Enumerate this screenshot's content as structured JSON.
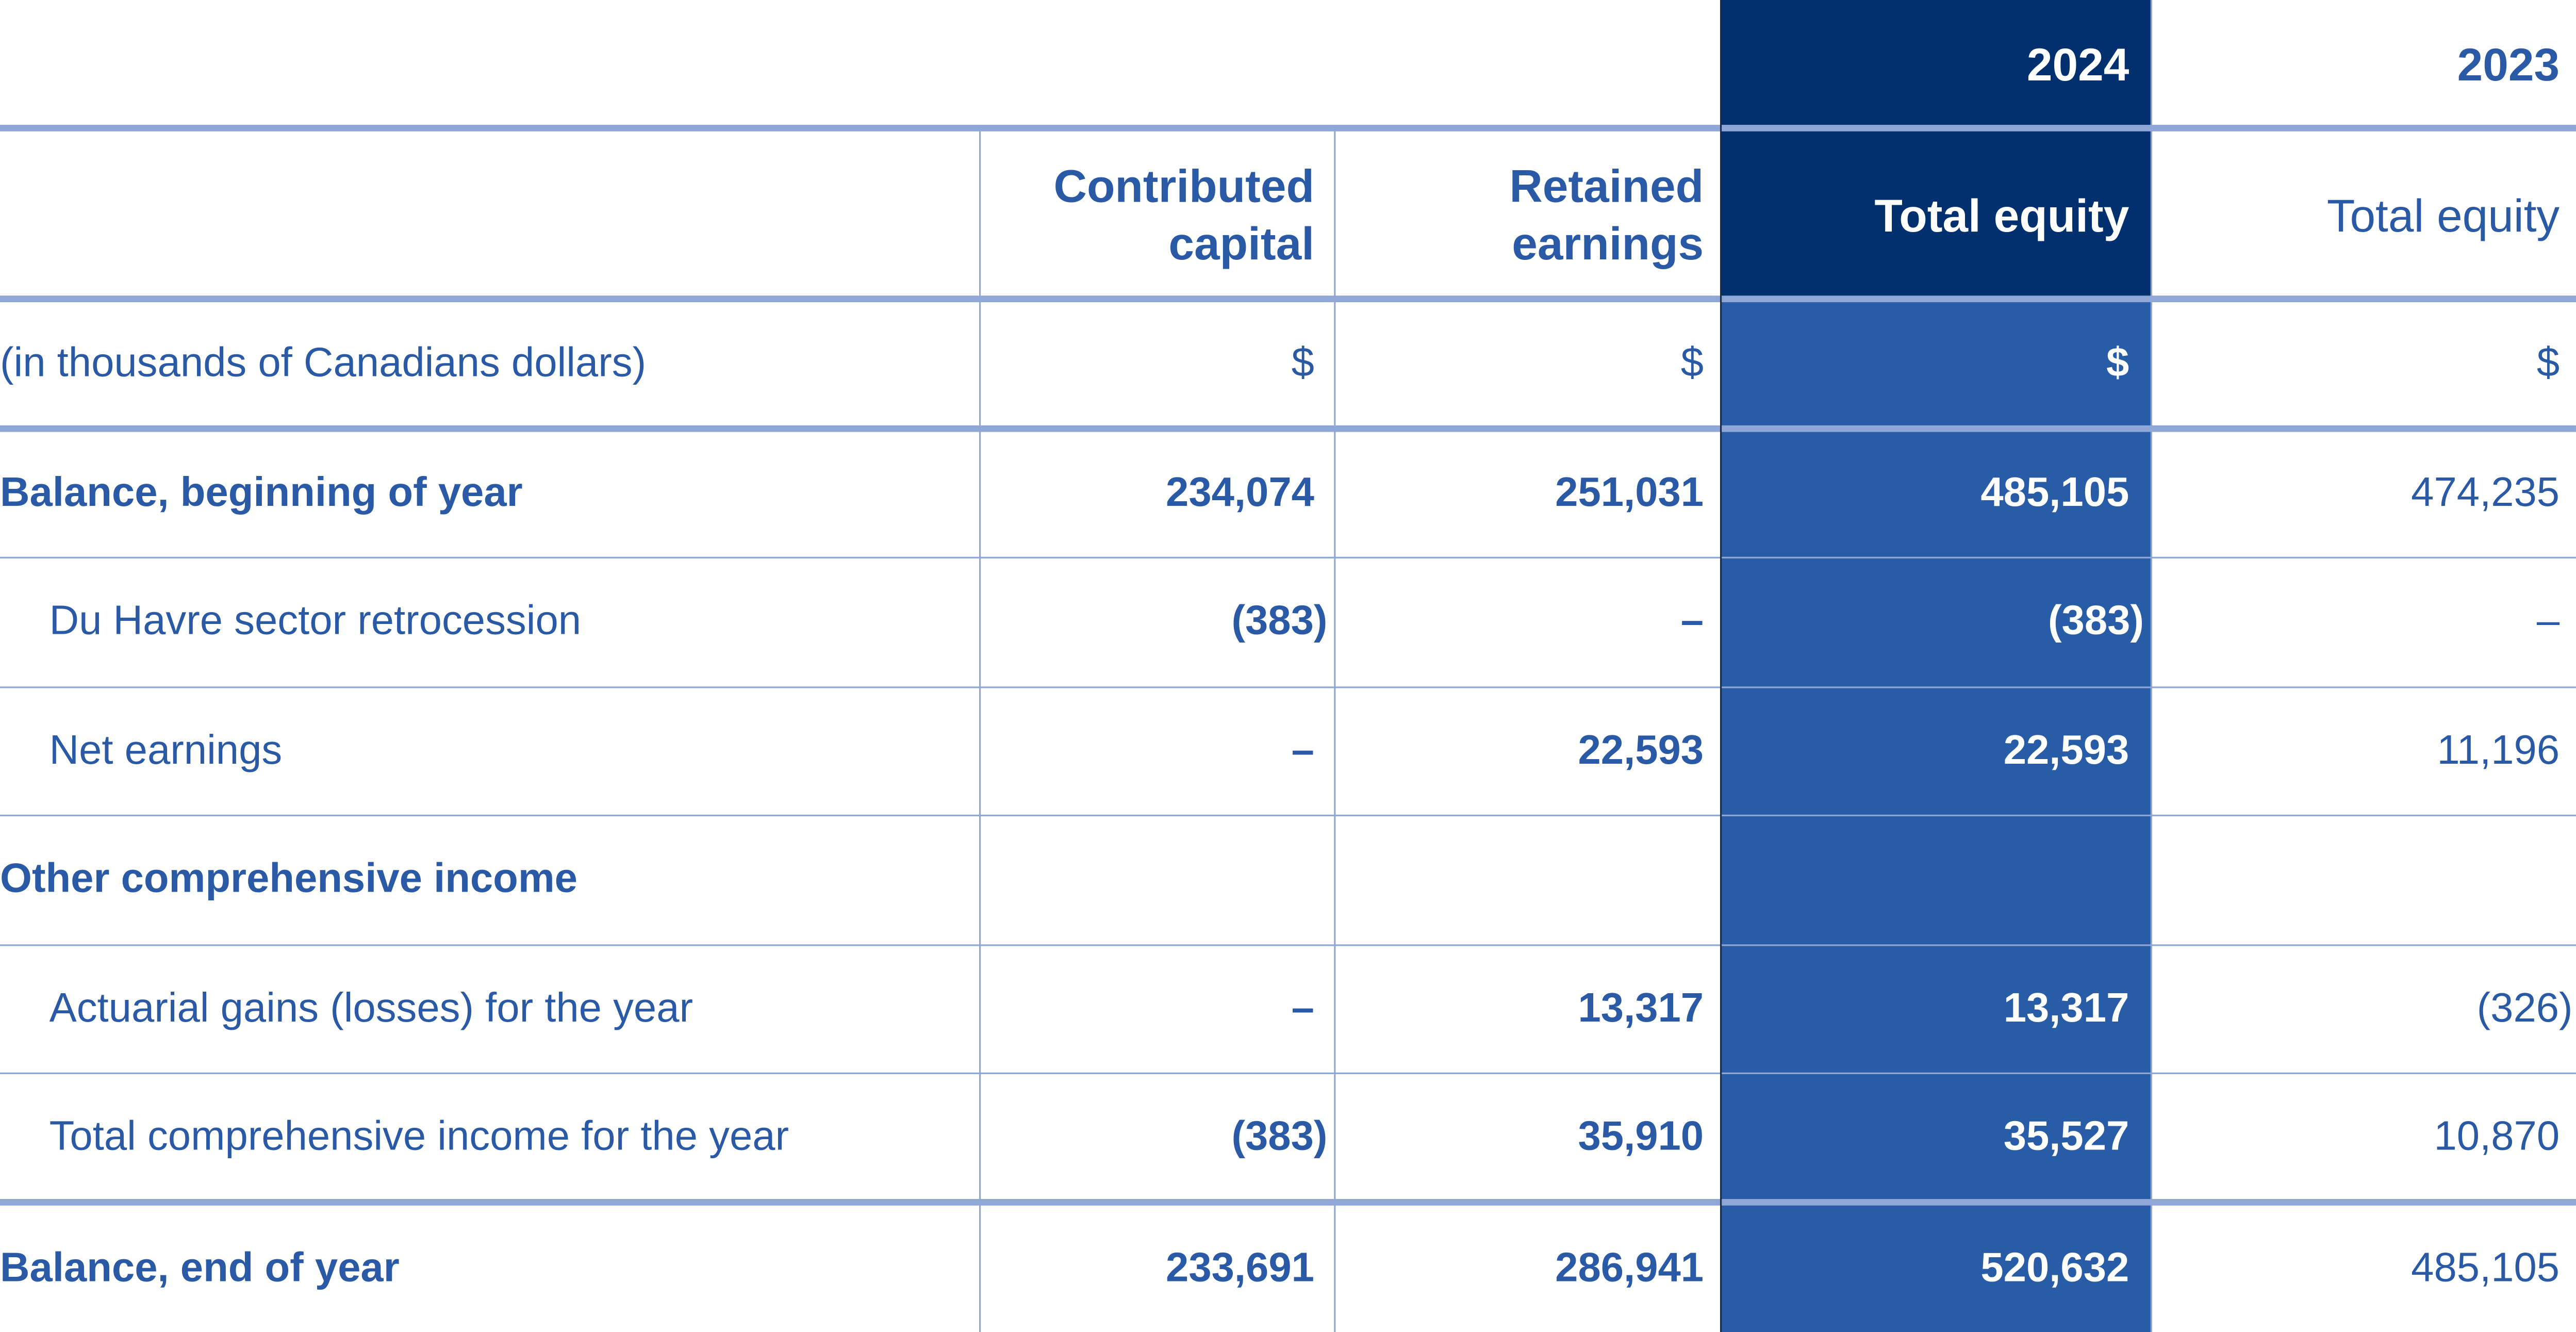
{
  "years": {
    "current": "2024",
    "prior": "2023"
  },
  "columns": {
    "contributed_capital": "Contributed capital",
    "retained_earnings": "Retained earnings",
    "total_equity_current": "Total equity",
    "total_equity_prior": "Total equity"
  },
  "units": {
    "label": "(in thousands of Canadians dollars)",
    "contributed": "$",
    "retained": "$",
    "total_current": "$",
    "total_prior": "$"
  },
  "rows": [
    {
      "label": "Balance, beginning of year",
      "contributed": "234,074",
      "retained": "251,031",
      "total_current": "485,105",
      "total_prior": "474,235"
    },
    {
      "label": "Du Havre sector retrocession",
      "contributed": "(383)",
      "retained": "–",
      "total_current": "(383)",
      "total_prior": "–"
    },
    {
      "label": "Net earnings",
      "contributed": "–",
      "retained": "22,593",
      "total_current": "22,593",
      "total_prior": "11,196"
    },
    {
      "label": "Other comprehensive income",
      "contributed": "",
      "retained": "",
      "total_current": "",
      "total_prior": ""
    },
    {
      "label": "Actuarial gains (losses) for the year",
      "contributed": "–",
      "retained": "13,317",
      "total_current": "13,317",
      "total_prior": "(326)"
    },
    {
      "label": "Total comprehensive income for the year",
      "contributed": "(383)",
      "retained": "35,910",
      "total_current": "35,527",
      "total_prior": "10,870"
    },
    {
      "label": "Balance, end of year",
      "contributed": "233,691",
      "retained": "286,941",
      "total_current": "520,632",
      "total_prior": "485,105"
    }
  ],
  "colors": {
    "text": "#2a5aa6",
    "highlight": "#285ca7",
    "highlight_header": "#02306f",
    "rule": "#8fa7d6"
  }
}
